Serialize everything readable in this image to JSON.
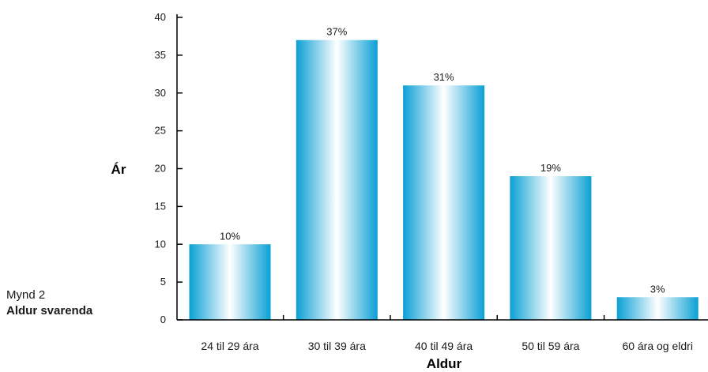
{
  "figure": {
    "caption_number": "Mynd 2",
    "caption_title": "Aldur svarenda"
  },
  "colors": {
    "bar_edge": "#0aa0d4",
    "bar_center": "#ffffff",
    "axis": "#000000"
  },
  "chart_data": {
    "type": "bar",
    "categories": [
      "24 til 29 ára",
      "30 til 39 ára",
      "40 til 49 ára",
      "50 til 59 ára",
      "60 ára og eldri"
    ],
    "values": [
      10,
      37,
      31,
      19,
      3
    ],
    "value_labels": [
      "10%",
      "37%",
      "31%",
      "19%",
      "3%"
    ],
    "xlabel": "Aldur",
    "ylabel": "Ár",
    "ylim": [
      0,
      40
    ],
    "yticks": [
      0,
      5,
      10,
      15,
      20,
      25,
      30,
      35,
      40
    ],
    "grid": false,
    "legend": "none"
  }
}
